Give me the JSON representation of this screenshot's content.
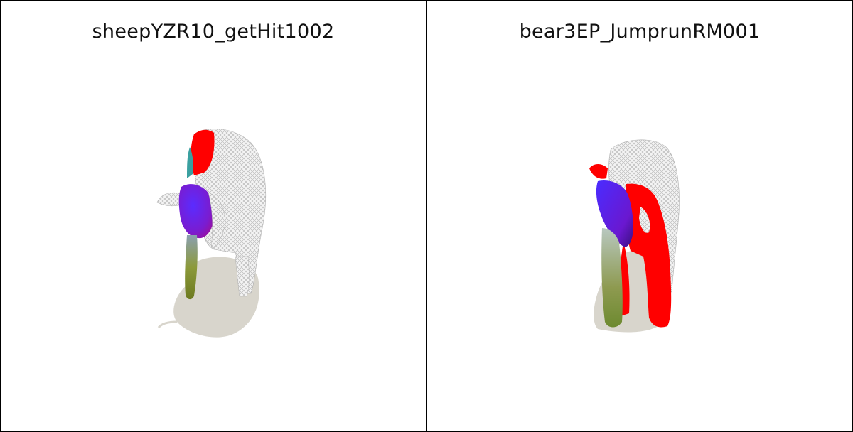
{
  "panels": [
    {
      "title": "sheepYZR10_getHit1002"
    },
    {
      "title": "bear3EP_JumprunRM001"
    }
  ],
  "colors": {
    "mesh_wire": "#bdbdbd",
    "mesh_fill": "#f2f2f2",
    "shadow": "#d8d5cc",
    "segment_red": "#ff0000",
    "segment_purple": "#6a1cff",
    "segment_green": "#7d8a2a"
  }
}
